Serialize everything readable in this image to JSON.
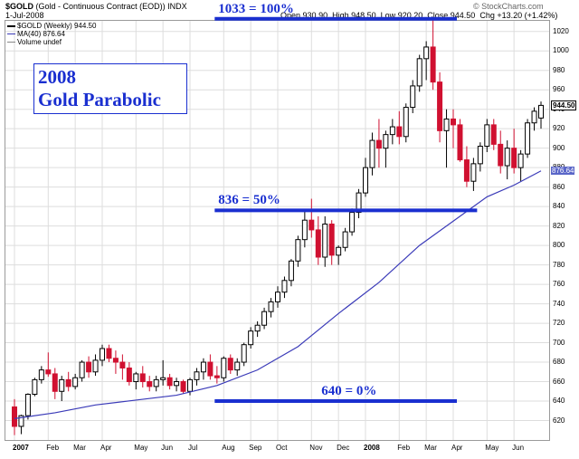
{
  "header": {
    "symbol": "$GOLD",
    "description": "(Gold - Continuous Contract (EOD))",
    "exchange": "INDX",
    "brand": "© StockCharts.com",
    "date": "1-Jul-2008",
    "open_label": "Open",
    "open": "930.90",
    "high_label": "High",
    "high": "948.50",
    "low_label": "Low",
    "low": "920.20",
    "close_label": "Close",
    "close": "944.50",
    "chg_label": "Chg",
    "chg": "+13.20 (+1.42%)"
  },
  "legend": {
    "price": "$GOLD (Weekly) 944.50",
    "ma": "MA(40) 876.64",
    "volume": "Volume undef"
  },
  "annotation": {
    "line1": "2008",
    "line2": "Gold Parabolic"
  },
  "colors": {
    "up": "#000000",
    "down": "#d01030",
    "ma": "#3a3ab8",
    "level": "#1a2fd0",
    "grid": "#dddddd"
  },
  "chart_data": {
    "type": "candlestick",
    "period": "weekly",
    "ylim": [
      600,
      1030
    ],
    "yticks": [
      620,
      640,
      660,
      680,
      700,
      720,
      740,
      760,
      780,
      800,
      820,
      840,
      860,
      880,
      900,
      920,
      940,
      960,
      980,
      1000,
      1020
    ],
    "xtick_labels": [
      {
        "label": "2007",
        "week": 0,
        "bold": true
      },
      {
        "label": "Feb",
        "week": 5,
        "bold": false
      },
      {
        "label": "Mar",
        "week": 9,
        "bold": false
      },
      {
        "label": "Apr",
        "week": 13,
        "bold": false
      },
      {
        "label": "May",
        "week": 18,
        "bold": false
      },
      {
        "label": "Jun",
        "week": 22,
        "bold": false
      },
      {
        "label": "Jul",
        "week": 26,
        "bold": false
      },
      {
        "label": "Aug",
        "week": 31,
        "bold": false
      },
      {
        "label": "Sep",
        "week": 35,
        "bold": false
      },
      {
        "label": "Oct",
        "week": 39,
        "bold": false
      },
      {
        "label": "Nov",
        "week": 44,
        "bold": false
      },
      {
        "label": "Dec",
        "week": 48,
        "bold": false
      },
      {
        "label": "2008",
        "week": 52,
        "bold": true
      },
      {
        "label": "Feb",
        "week": 57,
        "bold": false
      },
      {
        "label": "Mar",
        "week": 61,
        "bold": false
      },
      {
        "label": "Apr",
        "week": 65,
        "bold": false
      },
      {
        "label": "May",
        "week": 70,
        "bold": false
      },
      {
        "label": "Jun",
        "week": 74,
        "bold": false
      }
    ],
    "candles": [
      [
        634,
        642,
        605,
        614
      ],
      [
        614,
        626,
        606,
        625
      ],
      [
        625,
        648,
        621,
        647
      ],
      [
        647,
        664,
        645,
        662
      ],
      [
        662,
        676,
        658,
        672
      ],
      [
        672,
        690,
        665,
        668
      ],
      [
        668,
        674,
        642,
        650
      ],
      [
        650,
        666,
        640,
        662
      ],
      [
        662,
        670,
        650,
        655
      ],
      [
        655,
        668,
        652,
        664
      ],
      [
        664,
        682,
        660,
        680
      ],
      [
        680,
        686,
        664,
        670
      ],
      [
        670,
        688,
        666,
        682
      ],
      [
        682,
        698,
        676,
        694
      ],
      [
        694,
        698,
        680,
        684
      ],
      [
        684,
        692,
        668,
        680
      ],
      [
        680,
        688,
        662,
        674
      ],
      [
        674,
        680,
        656,
        660
      ],
      [
        660,
        670,
        652,
        668
      ],
      [
        668,
        676,
        654,
        660
      ],
      [
        660,
        666,
        650,
        655
      ],
      [
        655,
        666,
        650,
        662
      ],
      [
        662,
        682,
        656,
        664
      ],
      [
        664,
        668,
        652,
        656
      ],
      [
        656,
        664,
        650,
        660
      ],
      [
        660,
        662,
        648,
        650
      ],
      [
        650,
        664,
        646,
        662
      ],
      [
        662,
        674,
        656,
        670
      ],
      [
        670,
        684,
        662,
        680
      ],
      [
        680,
        688,
        662,
        666
      ],
      [
        666,
        676,
        658,
        664
      ],
      [
        664,
        686,
        660,
        684
      ],
      [
        684,
        688,
        668,
        672
      ],
      [
        672,
        684,
        666,
        680
      ],
      [
        680,
        700,
        676,
        698
      ],
      [
        698,
        716,
        694,
        712
      ],
      [
        712,
        722,
        706,
        718
      ],
      [
        718,
        736,
        714,
        732
      ],
      [
        732,
        746,
        726,
        742
      ],
      [
        742,
        758,
        736,
        752
      ],
      [
        752,
        768,
        746,
        764
      ],
      [
        764,
        786,
        758,
        784
      ],
      [
        784,
        810,
        778,
        806
      ],
      [
        806,
        836,
        798,
        826
      ],
      [
        826,
        848,
        808,
        816
      ],
      [
        816,
        830,
        780,
        788
      ],
      [
        788,
        830,
        778,
        822
      ],
      [
        822,
        826,
        780,
        790
      ],
      [
        790,
        800,
        780,
        798
      ],
      [
        798,
        818,
        794,
        814
      ],
      [
        814,
        838,
        810,
        834
      ],
      [
        834,
        858,
        828,
        854
      ],
      [
        854,
        890,
        850,
        880
      ],
      [
        880,
        916,
        872,
        908
      ],
      [
        908,
        930,
        880,
        900
      ],
      [
        900,
        918,
        880,
        914
      ],
      [
        914,
        930,
        904,
        922
      ],
      [
        922,
        938,
        904,
        912
      ],
      [
        912,
        946,
        906,
        942
      ],
      [
        942,
        970,
        936,
        964
      ],
      [
        964,
        996,
        958,
        992
      ],
      [
        992,
        1010,
        970,
        1004
      ],
      [
        1004,
        1033,
        960,
        968
      ],
      [
        968,
        978,
        906,
        918
      ],
      [
        918,
        940,
        880,
        930
      ],
      [
        930,
        940,
        900,
        924
      ],
      [
        924,
        930,
        886,
        888
      ],
      [
        888,
        902,
        860,
        866
      ],
      [
        866,
        890,
        856,
        884
      ],
      [
        884,
        906,
        876,
        902
      ],
      [
        902,
        930,
        896,
        924
      ],
      [
        924,
        930,
        898,
        904
      ],
      [
        904,
        918,
        874,
        882
      ],
      [
        882,
        908,
        868,
        900
      ],
      [
        900,
        920,
        874,
        880
      ],
      [
        880,
        898,
        866,
        894
      ],
      [
        894,
        930,
        890,
        926
      ],
      [
        926,
        942,
        918,
        938
      ],
      [
        931,
        948,
        920,
        944
      ]
    ],
    "ma40": [
      [
        0,
        622
      ],
      [
        6,
        628
      ],
      [
        12,
        636
      ],
      [
        18,
        641
      ],
      [
        24,
        646
      ],
      [
        30,
        656
      ],
      [
        36,
        672
      ],
      [
        42,
        696
      ],
      [
        48,
        730
      ],
      [
        54,
        762
      ],
      [
        60,
        800
      ],
      [
        66,
        830
      ],
      [
        70,
        850
      ],
      [
        74,
        862
      ],
      [
        78,
        876.64
      ]
    ],
    "levels": [
      {
        "label": "1033 = 100%",
        "value": 1033,
        "start_week": 31,
        "end_week": 65
      },
      {
        "label": "836 = 50%",
        "value": 836,
        "start_week": 31,
        "end_week": 68
      },
      {
        "label": "640 = 0%",
        "value": 640,
        "start_week": 31,
        "end_week": 65
      }
    ],
    "price_tag": "944.50",
    "ma_tag": "876.64"
  }
}
